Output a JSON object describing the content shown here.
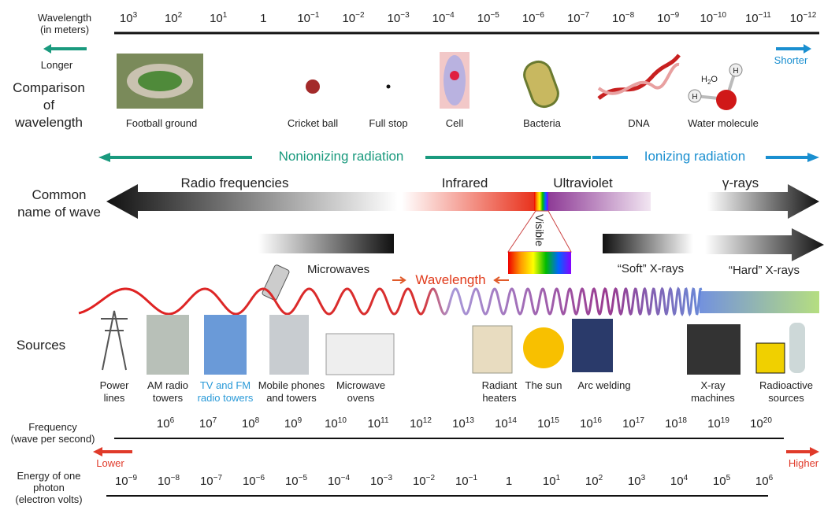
{
  "wavelength_axis": {
    "label": [
      "Wavelength",
      "(in meters)"
    ],
    "ticks": [
      {
        "base": "10",
        "exp": "3"
      },
      {
        "base": "10",
        "exp": "2"
      },
      {
        "base": "10",
        "exp": "1"
      },
      {
        "base": "1"
      },
      {
        "base": "10",
        "exp": "−1"
      },
      {
        "base": "10",
        "exp": "−2"
      },
      {
        "base": "10",
        "exp": "−3"
      },
      {
        "base": "10",
        "exp": "−4"
      },
      {
        "base": "10",
        "exp": "−5"
      },
      {
        "base": "10",
        "exp": "−6"
      },
      {
        "base": "10",
        "exp": "−7"
      },
      {
        "base": "10",
        "exp": "−8"
      },
      {
        "base": "10",
        "exp": "−9"
      },
      {
        "base": "10",
        "exp": "−10"
      },
      {
        "base": "10",
        "exp": "−11"
      },
      {
        "base": "10",
        "exp": "−12"
      }
    ],
    "longer": "Longer",
    "shorter": "Shorter"
  },
  "comparison": {
    "label": [
      "Comparison",
      "of",
      "wavelength"
    ],
    "items": [
      "Football ground",
      "Cricket ball",
      "Full stop",
      "Cell",
      "Bacteria",
      "DNA",
      "Water molecule"
    ],
    "formula": [
      "H",
      "2",
      "O"
    ],
    "atoms": [
      "H",
      "H"
    ]
  },
  "radiation": {
    "nonionizing": "Nonionizing radiation",
    "ionizing": "Ionizing radiation"
  },
  "wave_names": {
    "label": [
      "Common",
      "name of wave"
    ],
    "radio": "Radio frequencies",
    "infrared": "Infrared",
    "ultraviolet": "Ultraviolet",
    "gamma": "γ-rays",
    "visible": "Visible",
    "microwaves": "Microwaves",
    "soft_xrays": "“Soft” X-rays",
    "hard_xrays": "“Hard” X-rays",
    "wavelength": "Wavelength"
  },
  "sources": {
    "label": "Sources",
    "items": [
      [
        "Power",
        "lines"
      ],
      [
        "AM radio",
        "towers"
      ],
      [
        "TV and FM",
        "radio towers"
      ],
      [
        "Mobile phones",
        "and towers"
      ],
      [
        "Microwave",
        "ovens"
      ],
      [
        "Radiant",
        "heaters"
      ],
      [
        "The sun"
      ],
      [
        "Arc welding"
      ],
      [
        "X-ray",
        "machines"
      ],
      [
        "Radioactive",
        "sources"
      ]
    ]
  },
  "frequency_axis": {
    "label": [
      "Frequency",
      "(wave per second)"
    ],
    "ticks": [
      {
        "base": "10",
        "exp": "6"
      },
      {
        "base": "10",
        "exp": "7"
      },
      {
        "base": "10",
        "exp": "8"
      },
      {
        "base": "10",
        "exp": "9"
      },
      {
        "base": "10",
        "exp": "10"
      },
      {
        "base": "10",
        "exp": "11"
      },
      {
        "base": "10",
        "exp": "12"
      },
      {
        "base": "10",
        "exp": "13"
      },
      {
        "base": "10",
        "exp": "14"
      },
      {
        "base": "10",
        "exp": "15"
      },
      {
        "base": "10",
        "exp": "16"
      },
      {
        "base": "10",
        "exp": "17"
      },
      {
        "base": "10",
        "exp": "18"
      },
      {
        "base": "10",
        "exp": "19"
      },
      {
        "base": "10",
        "exp": "20"
      }
    ],
    "lower": "Lower",
    "higher": "Higher"
  },
  "energy_axis": {
    "label": [
      "Energy of one",
      "photon",
      "(electron volts)"
    ],
    "ticks": [
      {
        "base": "10",
        "exp": "−9"
      },
      {
        "base": "10",
        "exp": "−8"
      },
      {
        "base": "10",
        "exp": "−7"
      },
      {
        "base": "10",
        "exp": "−6"
      },
      {
        "base": "10",
        "exp": "−5"
      },
      {
        "base": "10",
        "exp": "−4"
      },
      {
        "base": "10",
        "exp": "−3"
      },
      {
        "base": "10",
        "exp": "−2"
      },
      {
        "base": "10",
        "exp": "−1"
      },
      {
        "base": "1"
      },
      {
        "base": "10",
        "exp": "1"
      },
      {
        "base": "10",
        "exp": "2"
      },
      {
        "base": "10",
        "exp": "3"
      },
      {
        "base": "10",
        "exp": "4"
      },
      {
        "base": "10",
        "exp": "5"
      },
      {
        "base": "10",
        "exp": "6"
      }
    ]
  }
}
